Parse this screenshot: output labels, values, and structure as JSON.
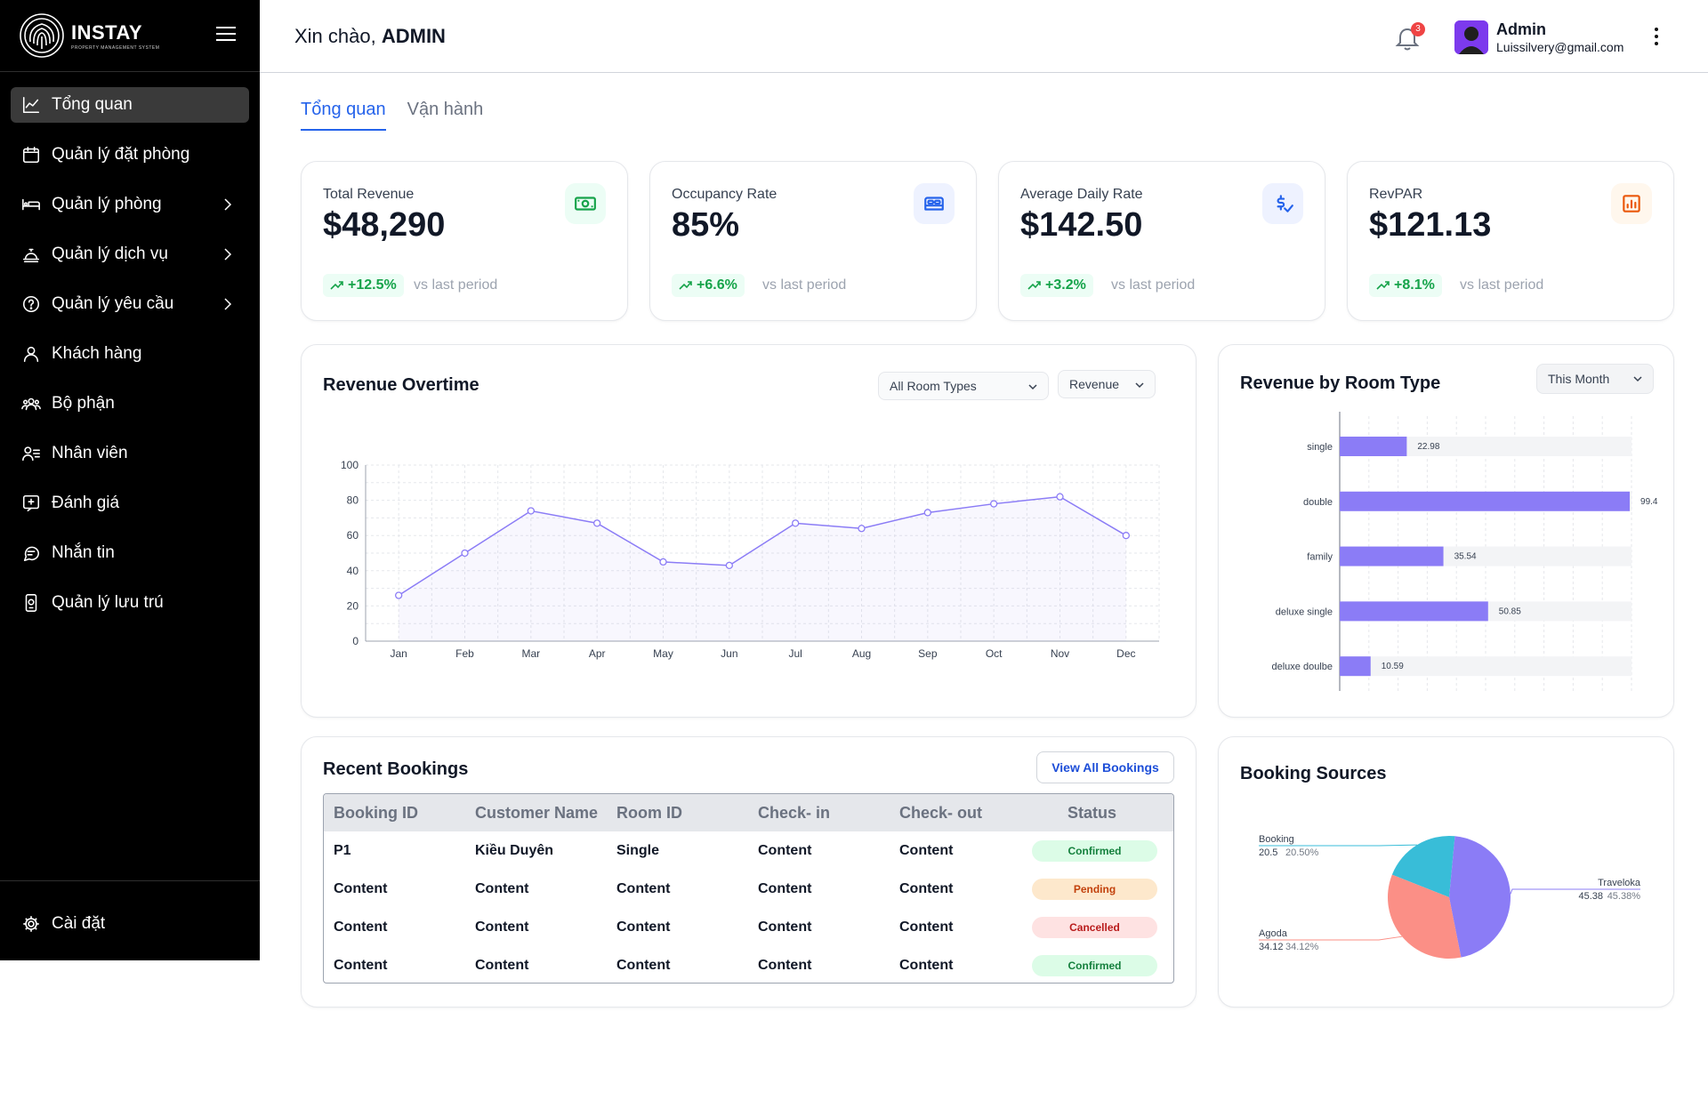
{
  "brand": {
    "name": "INSTAY",
    "subtitle": "PROPERTY MANAGEMENT SYSTEM"
  },
  "sidebar": {
    "items": [
      {
        "label": "Tổng quan",
        "icon": "chart-line-icon",
        "active": true,
        "has_children": false
      },
      {
        "label": "Quản lý đặt phòng",
        "icon": "calendar-icon",
        "active": false,
        "has_children": false
      },
      {
        "label": "Quản lý phòng",
        "icon": "bed-icon",
        "active": false,
        "has_children": true
      },
      {
        "label": "Quản lý dịch vụ",
        "icon": "service-bell-icon",
        "active": false,
        "has_children": true
      },
      {
        "label": "Quản lý yêu cầu",
        "icon": "help-circle-icon",
        "active": false,
        "has_children": true
      },
      {
        "label": "Khách hàng",
        "icon": "user-icon",
        "active": false,
        "has_children": false
      },
      {
        "label": "Bộ phận",
        "icon": "team-icon",
        "active": false,
        "has_children": false
      },
      {
        "label": "Nhân viên",
        "icon": "user-list-icon",
        "active": false,
        "has_children": false
      },
      {
        "label": "Đánh giá",
        "icon": "review-icon",
        "active": false,
        "has_children": false
      },
      {
        "label": "Nhắn tin",
        "icon": "chat-icon",
        "active": false,
        "has_children": false
      },
      {
        "label": "Quản lý lưu trú",
        "icon": "phone-icon",
        "active": false,
        "has_children": false
      }
    ],
    "settings_label": "Cài đặt"
  },
  "header": {
    "greeting": "Xin chào, ",
    "greeting_name": "ADMIN",
    "notification_count": "3",
    "user_name": "Admin",
    "user_email": "Luissilvery@gmail.com"
  },
  "tabs": [
    {
      "label": "Tổng quan",
      "active": true
    },
    {
      "label": "Vận hành",
      "active": false
    }
  ],
  "kpis": [
    {
      "label": "Total Revenue",
      "value": "$48,290",
      "trend": "+12.5%",
      "vs": "vs last period",
      "icon": "money-icon",
      "icon_bg": "#ecfdf5",
      "icon_color": "#16a34a"
    },
    {
      "label": "Occupancy Rate",
      "value": "85%",
      "trend": "+6.6%",
      "vs": "vs last period",
      "icon": "bed-icon",
      "icon_bg": "#eef2ff",
      "icon_color": "#2563eb"
    },
    {
      "label": "Average Daily Rate",
      "value": "$142.50",
      "trend": "+3.2%",
      "vs": "vs last period",
      "icon": "dollar-check-icon",
      "icon_bg": "#eef2ff",
      "icon_color": "#2563eb"
    },
    {
      "label": "RevPAR",
      "value": "$121.13",
      "trend": "+8.1%",
      "vs": "vs last period",
      "icon": "bar-report-icon",
      "icon_bg": "#fff7ed",
      "icon_color": "#ea580c"
    }
  ],
  "revenue_overtime": {
    "title": "Revenue Overtime",
    "filter_room": "All Room Types",
    "filter_metric": "Revenue"
  },
  "room_type": {
    "title": "Revenue by Room Type",
    "filter_period": "This Month"
  },
  "bookings": {
    "title": "Recent Bookings",
    "view_all": "View All Bookings",
    "columns": [
      "Booking ID",
      "Customer Name",
      "Room ID",
      "Check- in",
      "Check- out",
      "Status"
    ],
    "rows": [
      {
        "booking_id": "P1",
        "customer": "Kiều Duyên",
        "room": "Single",
        "check_in": "Content",
        "check_out": "Content",
        "status": "Confirmed"
      },
      {
        "booking_id": "Content",
        "customer": "Content",
        "room": "Content",
        "check_in": "Content",
        "check_out": "Content",
        "status": "Pending"
      },
      {
        "booking_id": "Content",
        "customer": "Content",
        "room": "Content",
        "check_in": "Content",
        "check_out": "Content",
        "status": "Cancelled"
      },
      {
        "booking_id": "Content",
        "customer": "Content",
        "room": "Content",
        "check_in": "Content",
        "check_out": "Content",
        "status": "Confirmed"
      }
    ]
  },
  "sources": {
    "title": "Booking Sources"
  },
  "colors": {
    "accent": "#2563eb",
    "line": "#8b7cf6",
    "bar": "#8b7cf6",
    "pie_booking": "#38bdd8",
    "pie_agoda": "#fb8f86",
    "pie_traveloka": "#8b7cf6"
  },
  "chart_data": [
    {
      "type": "line",
      "title": "Revenue Overtime",
      "categories": [
        "Jan",
        "Feb",
        "Mar",
        "Apr",
        "May",
        "Jun",
        "Jul",
        "Aug",
        "Sep",
        "Oct",
        "Nov",
        "Dec"
      ],
      "series": [
        {
          "values": [
            26,
            50,
            74,
            67,
            45,
            43,
            67,
            64,
            73,
            78,
            82,
            60
          ]
        }
      ],
      "ylim": [
        0,
        100
      ],
      "yticks": [
        0,
        20,
        40,
        60,
        80,
        100
      ],
      "grid": true
    },
    {
      "type": "bar",
      "orientation": "horizontal",
      "title": "Revenue by Room Type",
      "categories": [
        "single",
        "double",
        "family",
        "deluxe single",
        "deluxe doulbe"
      ],
      "values": [
        22.98,
        99.4,
        35.54,
        50.85,
        10.59
      ],
      "value_labels": [
        "22.98",
        "99.4",
        "35.54",
        "50.85",
        "10.59"
      ],
      "xlim": [
        0,
        100
      ],
      "grid": true
    },
    {
      "type": "pie",
      "title": "Booking Sources",
      "slices": [
        {
          "name": "Booking",
          "value": 20.5,
          "value_label": "20.5",
          "percent_label": "20.50%"
        },
        {
          "name": "Traveloka",
          "value": 45.38,
          "value_label": "45.38",
          "percent_label": "45.38%"
        },
        {
          "name": "Agoda",
          "value": 34.12,
          "value_label": "34.12",
          "percent_label": "34.12%"
        }
      ]
    }
  ]
}
